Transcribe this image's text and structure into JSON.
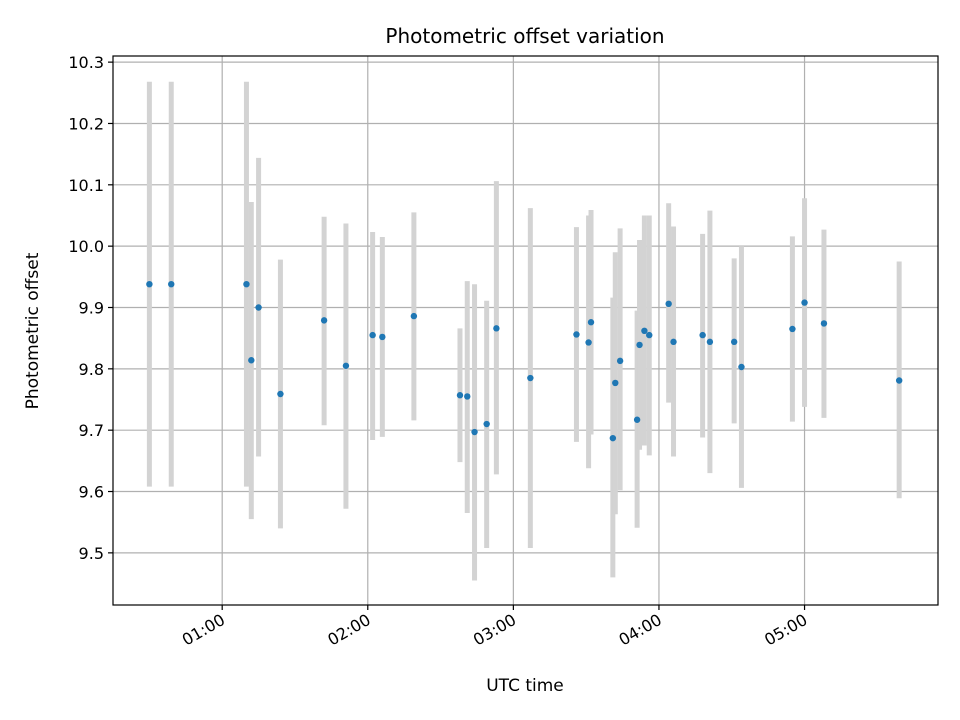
{
  "chart_data": {
    "type": "scatter",
    "title": "Photometric offset variation",
    "xlabel": "UTC time",
    "ylabel": "Photometric offset",
    "x_tick_labels": [
      "01:00",
      "02:00",
      "03:00",
      "04:00",
      "05:00"
    ],
    "x_tick_values": [
      "01:00",
      "02:00",
      "03:00",
      "04:00",
      "05:00"
    ],
    "y_tick_labels": [
      "9.5",
      "9.6",
      "9.7",
      "9.8",
      "9.9",
      "10.0",
      "10.1",
      "10.2",
      "10.3"
    ],
    "xlim": [
      "00:15",
      "05:55"
    ],
    "ylim": [
      9.415,
      10.31
    ],
    "grid": true,
    "colors": {
      "point": "#1f77b4",
      "errorbar": "#d3d3d3",
      "grid": "#b0b0b0"
    },
    "points": [
      {
        "x": "00:30",
        "y": 9.938,
        "ylow": 9.608,
        "yhigh": 10.268
      },
      {
        "x": "00:39",
        "y": 9.938,
        "ylow": 9.608,
        "yhigh": 10.268
      },
      {
        "x": "01:10",
        "y": 9.938,
        "ylow": 9.608,
        "yhigh": 10.268
      },
      {
        "x": "01:12",
        "y": 9.814,
        "ylow": 9.555,
        "yhigh": 10.072
      },
      {
        "x": "01:15",
        "y": 9.9,
        "ylow": 9.657,
        "yhigh": 10.144
      },
      {
        "x": "01:24",
        "y": 9.759,
        "ylow": 9.54,
        "yhigh": 9.978
      },
      {
        "x": "01:42",
        "y": 9.879,
        "ylow": 9.708,
        "yhigh": 10.048
      },
      {
        "x": "01:51",
        "y": 9.805,
        "ylow": 9.572,
        "yhigh": 10.037
      },
      {
        "x": "02:02",
        "y": 9.855,
        "ylow": 9.684,
        "yhigh": 10.023
      },
      {
        "x": "02:06",
        "y": 9.852,
        "ylow": 9.689,
        "yhigh": 10.015
      },
      {
        "x": "02:19",
        "y": 9.886,
        "ylow": 9.716,
        "yhigh": 10.055
      },
      {
        "x": "02:38",
        "y": 9.757,
        "ylow": 9.648,
        "yhigh": 9.866
      },
      {
        "x": "02:41",
        "y": 9.755,
        "ylow": 9.565,
        "yhigh": 9.943
      },
      {
        "x": "02:44",
        "y": 9.697,
        "ylow": 9.455,
        "yhigh": 9.938
      },
      {
        "x": "02:49",
        "y": 9.71,
        "ylow": 9.508,
        "yhigh": 9.911
      },
      {
        "x": "02:53",
        "y": 9.866,
        "ylow": 9.628,
        "yhigh": 10.106
      },
      {
        "x": "03:07",
        "y": 9.785,
        "ylow": 9.508,
        "yhigh": 10.062
      },
      {
        "x": "03:26",
        "y": 9.856,
        "ylow": 9.681,
        "yhigh": 10.031
      },
      {
        "x": "03:31",
        "y": 9.843,
        "ylow": 9.638,
        "yhigh": 10.05
      },
      {
        "x": "03:32",
        "y": 9.876,
        "ylow": 9.693,
        "yhigh": 10.059
      },
      {
        "x": "03:41",
        "y": 9.687,
        "ylow": 9.46,
        "yhigh": 9.916
      },
      {
        "x": "03:42",
        "y": 9.777,
        "ylow": 9.563,
        "yhigh": 9.99
      },
      {
        "x": "03:44",
        "y": 9.813,
        "ylow": 9.602,
        "yhigh": 10.029
      },
      {
        "x": "03:51",
        "y": 9.717,
        "ylow": 9.541,
        "yhigh": 9.895
      },
      {
        "x": "03:52",
        "y": 9.839,
        "ylow": 9.668,
        "yhigh": 10.01
      },
      {
        "x": "03:54",
        "y": 9.862,
        "ylow": 9.675,
        "yhigh": 10.05
      },
      {
        "x": "03:56",
        "y": 9.855,
        "ylow": 9.659,
        "yhigh": 10.05
      },
      {
        "x": "04:04",
        "y": 9.906,
        "ylow": 9.745,
        "yhigh": 10.07
      },
      {
        "x": "04:06",
        "y": 9.844,
        "ylow": 9.657,
        "yhigh": 10.032
      },
      {
        "x": "04:18",
        "y": 9.855,
        "ylow": 9.688,
        "yhigh": 10.02
      },
      {
        "x": "04:21",
        "y": 9.844,
        "ylow": 9.63,
        "yhigh": 10.058
      },
      {
        "x": "04:31",
        "y": 9.844,
        "ylow": 9.711,
        "yhigh": 9.98
      },
      {
        "x": "04:34",
        "y": 9.803,
        "ylow": 9.606,
        "yhigh": 10.0
      },
      {
        "x": "04:55",
        "y": 9.865,
        "ylow": 9.714,
        "yhigh": 10.016
      },
      {
        "x": "05:00",
        "y": 9.908,
        "ylow": 9.738,
        "yhigh": 10.078
      },
      {
        "x": "05:08",
        "y": 9.874,
        "ylow": 9.72,
        "yhigh": 10.027
      },
      {
        "x": "05:39",
        "y": 9.781,
        "ylow": 9.589,
        "yhigh": 9.975
      }
    ]
  }
}
